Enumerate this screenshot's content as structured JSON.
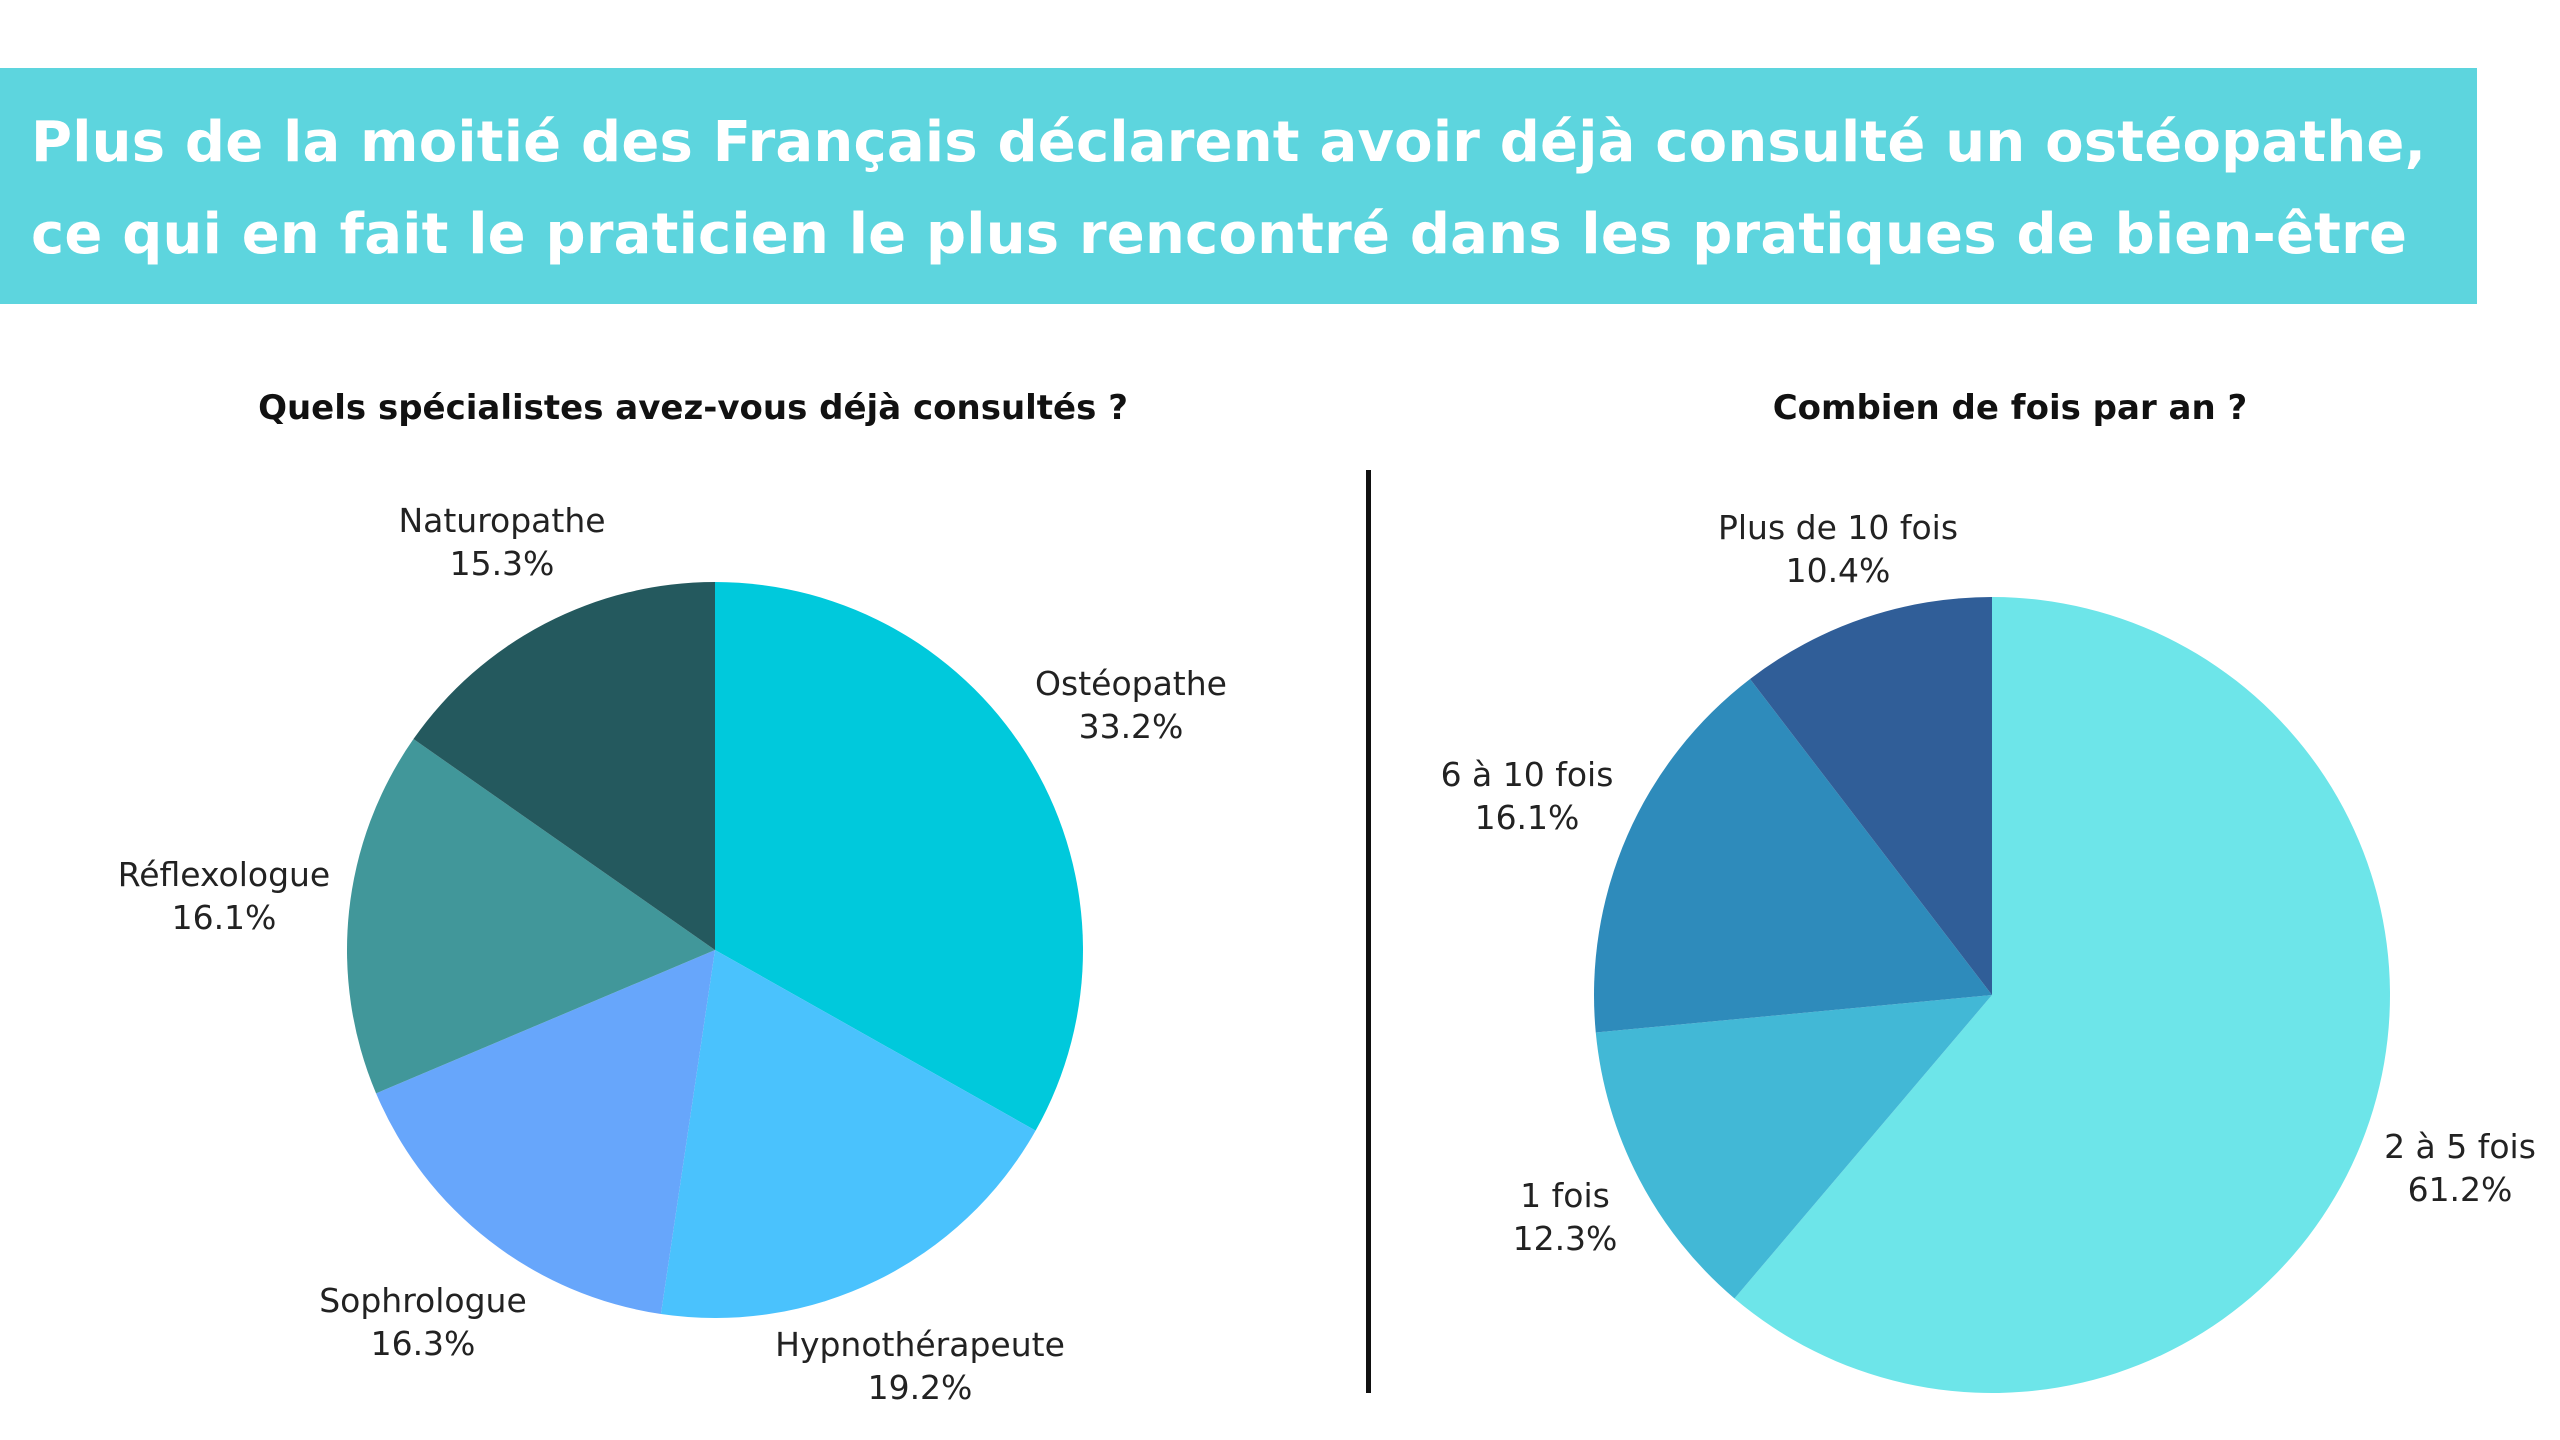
{
  "headline": {
    "line1": "Plus de la moitié des Français déclarent avoir déjà consulté un ostéopathe,",
    "line2": "ce qui en fait le praticien le plus rencontré dans les pratiques de bien-être"
  },
  "colors": {
    "banner": "#5dd5de",
    "divider": "#111111"
  },
  "chart_data": [
    {
      "type": "pie",
      "title": "Quels spécialistes avez-vous déjà consultés ?",
      "labels": [
        "Ostéopathe",
        "Hypnothérapeute",
        "Sophrologue",
        "Réflexologue",
        "Naturopathe"
      ],
      "values": [
        33.2,
        19.2,
        16.3,
        16.1,
        15.3
      ],
      "value_labels": [
        "33.2%",
        "19.2%",
        "16.3%",
        "16.1%",
        "15.3%"
      ],
      "colors": [
        "#00c9dc",
        "#4ac2fd",
        "#67a6fb",
        "#41979a",
        "#24595e"
      ],
      "start": "12 o'clock",
      "direction": "clockwise",
      "legend": "labels on slices"
    },
    {
      "type": "pie",
      "title": "Combien de fois par an ?",
      "labels": [
        "2 à 5 fois",
        "1 fois",
        "6 à 10 fois",
        "Plus de 10 fois"
      ],
      "values": [
        61.2,
        12.3,
        16.1,
        10.4
      ],
      "value_labels": [
        "61.2%",
        "12.3%",
        "16.1%",
        "10.4%"
      ],
      "colors": [
        "#6de5e9",
        "#42b8d6",
        "#2e8bbb",
        "#305e98"
      ],
      "start": "12 o'clock",
      "direction": "clockwise",
      "legend": "labels on slices"
    }
  ]
}
